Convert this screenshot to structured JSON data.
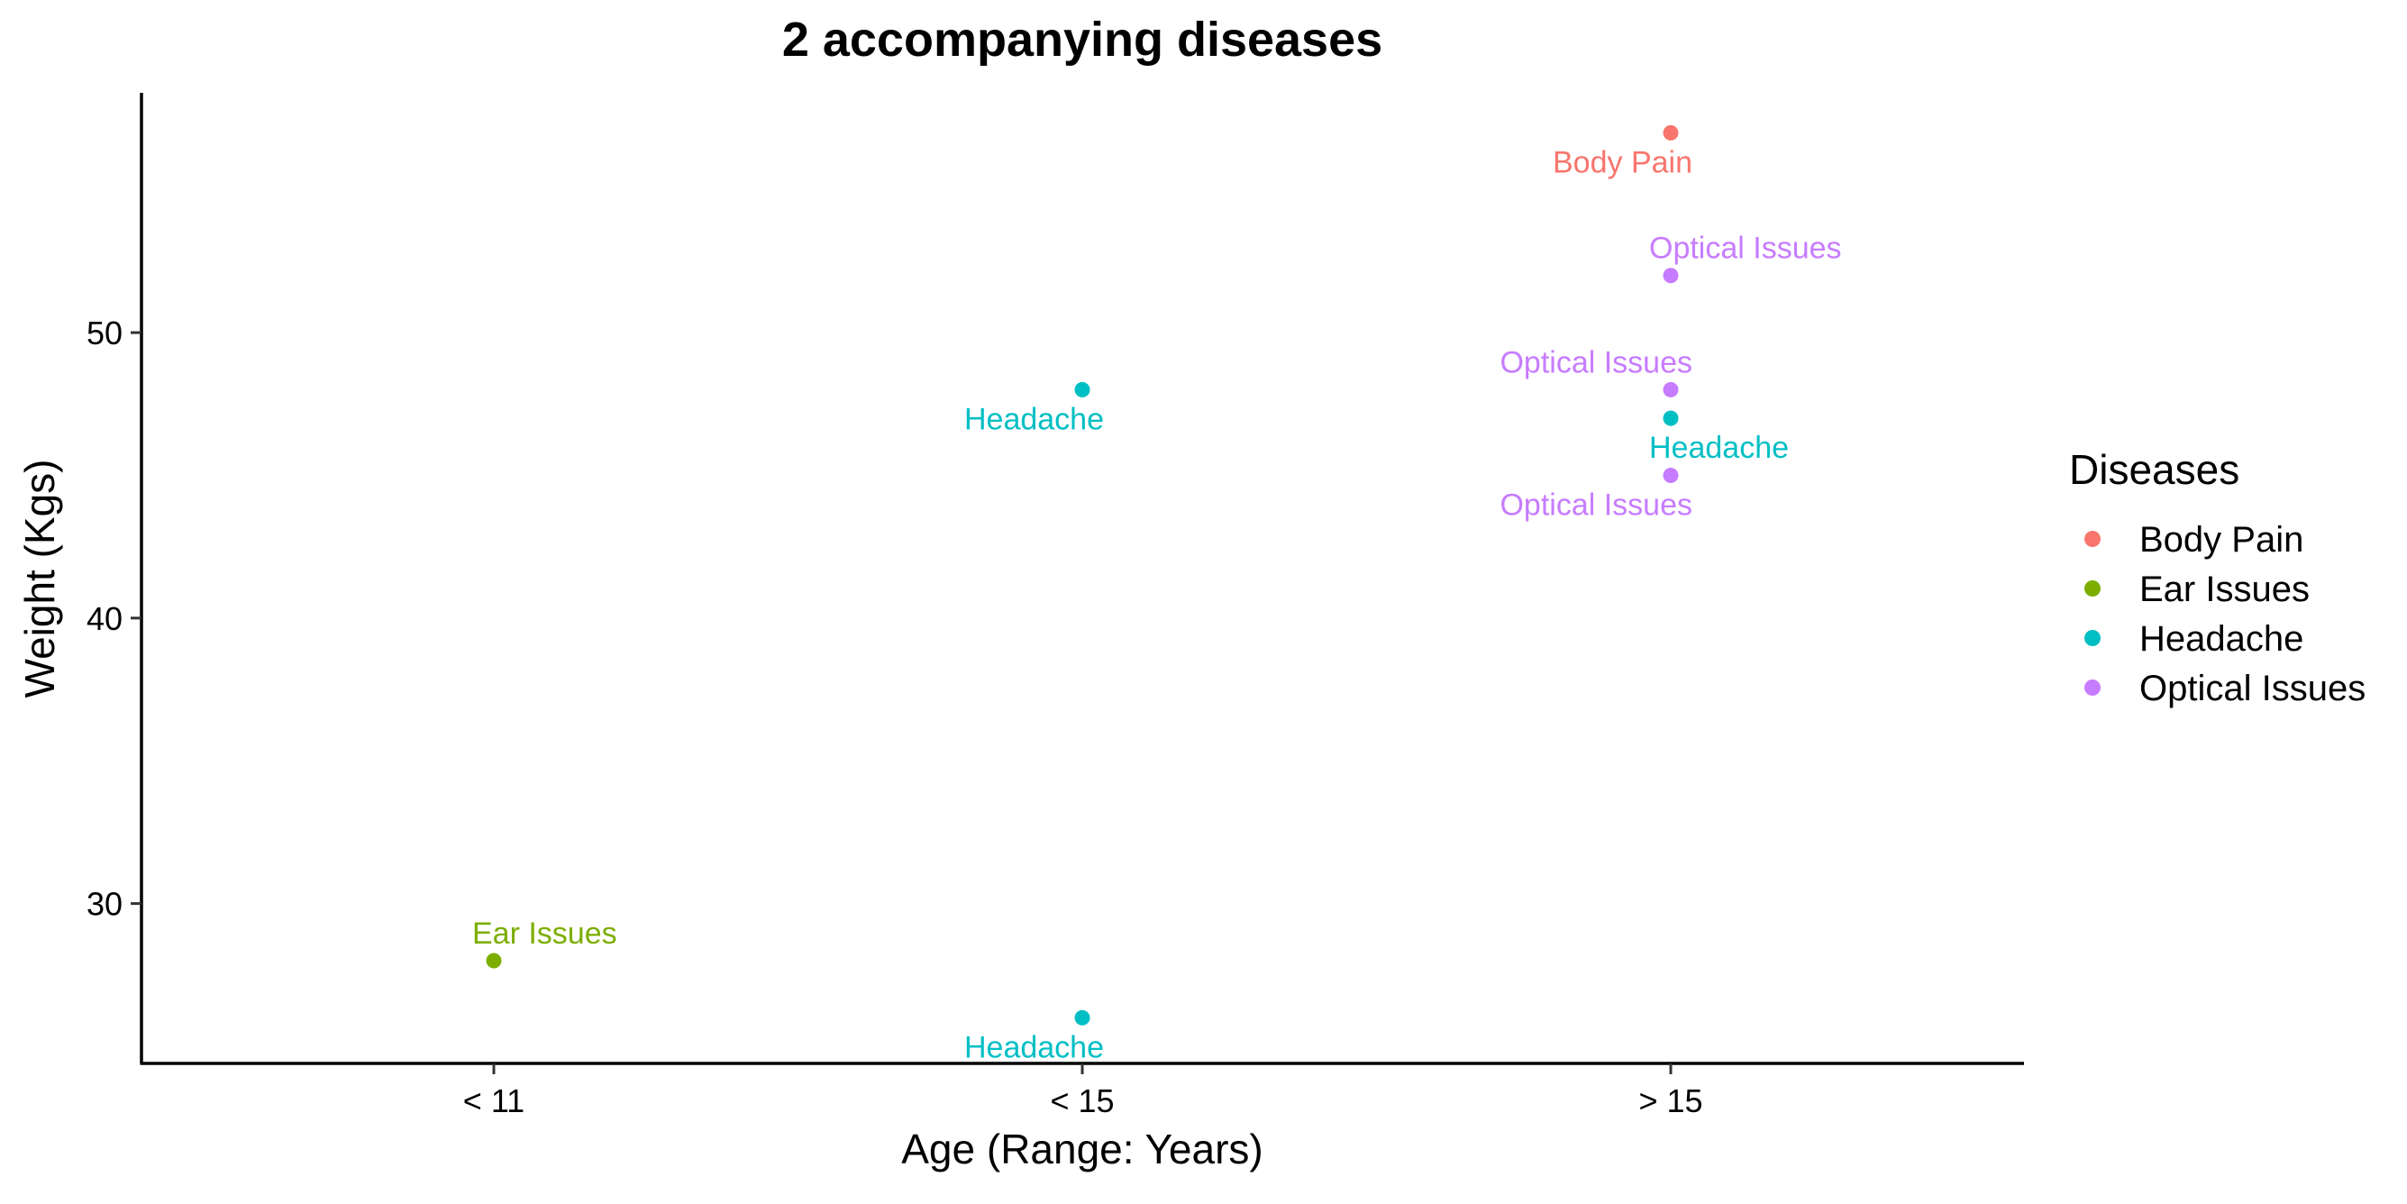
{
  "chart_data": {
    "type": "scatter",
    "title": "2 accompanying diseases",
    "xlabel": "Age (Range: Years)",
    "ylabel": "Weight (Kgs)",
    "x_categories": [
      "< 11",
      "< 15",
      "> 15"
    ],
    "y_ticks": [
      30,
      40,
      50
    ],
    "ylim": [
      24.4,
      58.4
    ],
    "grid": false,
    "legend": {
      "title": "Diseases",
      "placement": "right",
      "entries": [
        {
          "name": "Body Pain",
          "color": "#F8766D"
        },
        {
          "name": "Ear Issues",
          "color": "#7CAE00"
        },
        {
          "name": "Headache",
          "color": "#00BFC4"
        },
        {
          "name": "Optical Issues",
          "color": "#C77CFF"
        }
      ]
    },
    "points": [
      {
        "x": "> 15",
        "y": 57,
        "disease": "Body Pain",
        "label": "Body Pain",
        "label_side": "below-left"
      },
      {
        "x": "> 15",
        "y": 52,
        "disease": "Optical Issues",
        "label": "Optical Issues",
        "label_side": "above-right"
      },
      {
        "x": "> 15",
        "y": 48,
        "disease": "Optical Issues",
        "label": "Optical Issues",
        "label_side": "above-left"
      },
      {
        "x": "> 15",
        "y": 47,
        "disease": "Headache",
        "label": "Headache",
        "label_side": "below-right"
      },
      {
        "x": "> 15",
        "y": 45,
        "disease": "Optical Issues",
        "label": "Optical Issues",
        "label_side": "below-left"
      },
      {
        "x": "< 15",
        "y": 48,
        "disease": "Headache",
        "label": "Headache",
        "label_side": "below-left"
      },
      {
        "x": "< 15",
        "y": 26,
        "disease": "Headache",
        "label": "Headache",
        "label_side": "below-left"
      },
      {
        "x": "< 11",
        "y": 28,
        "disease": "Ear Issues",
        "label": "Ear Issues",
        "label_side": "above-right"
      }
    ]
  }
}
